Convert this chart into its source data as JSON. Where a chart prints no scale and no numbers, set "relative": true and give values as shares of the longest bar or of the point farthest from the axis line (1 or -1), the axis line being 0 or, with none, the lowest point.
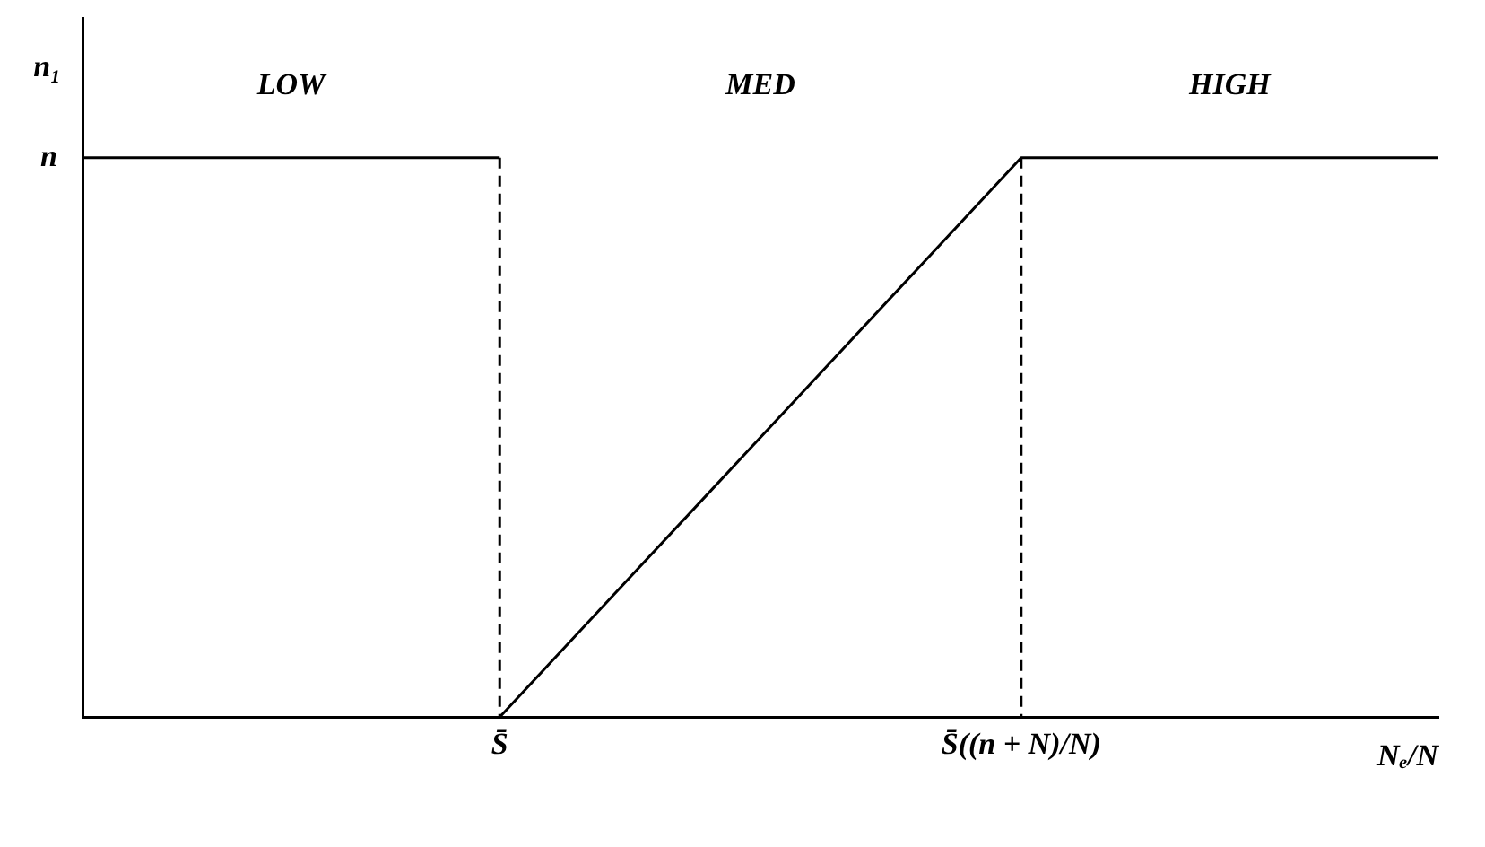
{
  "chart_data": {
    "type": "line",
    "relative": true,
    "xlabel": "Nₑ/N",
    "ylabel": "n₁",
    "categories": [
      null,
      null,
      null,
      null,
      "S̄",
      null,
      null,
      null,
      null,
      "S̄((n + N)/N)",
      null,
      null,
      null,
      null
    ],
    "grid": false,
    "legend": false,
    "marker": "none",
    "series": [
      {
        "color": "#000000",
        "line_style": "solid",
        "values": [
          1,
          1,
          1,
          1,
          1,
          null,
          null,
          null,
          null,
          null,
          null,
          null,
          null,
          null
        ]
      },
      {
        "color": "#000000",
        "line_style": "solid",
        "values": [
          null,
          null,
          null,
          null,
          0,
          0.2,
          0.4,
          0.6,
          0.8,
          1,
          1,
          1,
          1,
          1
        ]
      },
      {
        "color": "#000000",
        "line_style": "dashed",
        "x": [
          "S̄",
          "S̄"
        ],
        "values": [
          1,
          0
        ]
      },
      {
        "color": "#000000",
        "line_style": "dashed",
        "x": [
          "S̄((n + N)/N)",
          "S̄((n + N)/N)"
        ],
        "values": [
          1,
          0
        ]
      }
    ],
    "annotations": [
      "LOW",
      "MED",
      "HIGH",
      "n"
    ]
  }
}
